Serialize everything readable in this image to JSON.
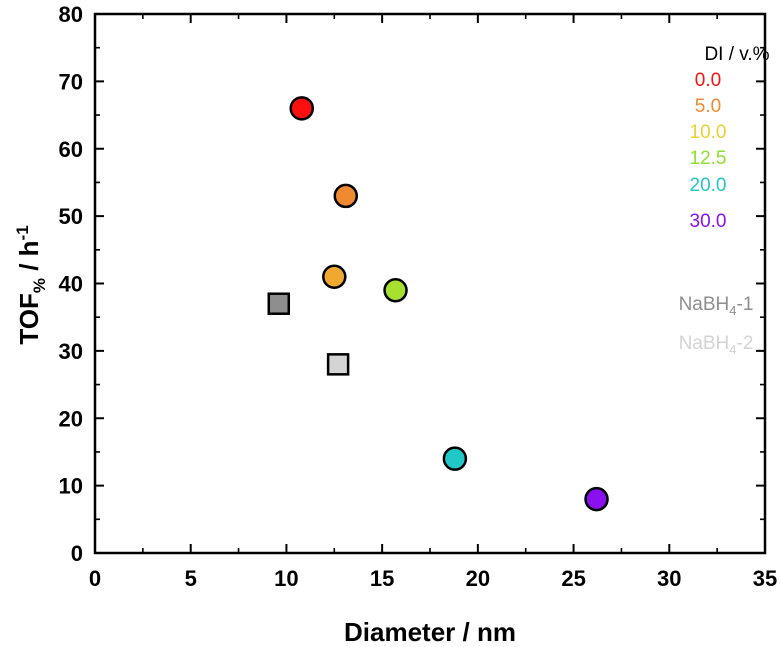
{
  "chart_data": {
    "type": "scatter",
    "xlabel": "Diameter / nm",
    "ylabel_main": "TOF",
    "ylabel_sub": "%",
    "ylabel_tail": " / h",
    "ylabel_sup": "-1",
    "xlim": [
      0,
      35
    ],
    "ylim": [
      0,
      80
    ],
    "x_ticks": [
      0,
      5,
      10,
      15,
      20,
      25,
      30,
      35
    ],
    "y_ticks": [
      0,
      10,
      20,
      30,
      40,
      50,
      60,
      70,
      80
    ],
    "x_tick_labels": [
      "0",
      "5",
      "10",
      "15",
      "20",
      "25",
      "30",
      "35"
    ],
    "y_tick_labels": [
      "0",
      "10",
      "20",
      "30",
      "40",
      "50",
      "60",
      "70",
      "80"
    ],
    "grid": false,
    "legend_title": "DI / v.%",
    "legend_placement": "top-right",
    "series": [
      {
        "name": "0.0",
        "marker": "circle",
        "color": "#ff1010",
        "x": [
          10.8
        ],
        "y": [
          66
        ]
      },
      {
        "name": "5.0",
        "marker": "circle",
        "color": "#f08a30",
        "x": [
          13.1
        ],
        "y": [
          53
        ]
      },
      {
        "name": "10.0",
        "marker": "circle",
        "color": "#f0a830",
        "x": [
          12.5
        ],
        "y": [
          41
        ]
      },
      {
        "name": "12.5",
        "marker": "circle",
        "color": "#a8e030",
        "x": [
          15.7
        ],
        "y": [
          39
        ]
      },
      {
        "name": "20.0",
        "marker": "circle",
        "color": "#20c8c8",
        "x": [
          18.8
        ],
        "y": [
          14
        ]
      },
      {
        "name": "30.0",
        "marker": "circle",
        "color": "#8a10f0",
        "x": [
          26.2
        ],
        "y": [
          8
        ]
      },
      {
        "name_main": "NaBH",
        "name_sub": "4",
        "name_tail": "-1",
        "marker": "square",
        "color": "#8e8e8e",
        "x": [
          9.6
        ],
        "y": [
          37
        ]
      },
      {
        "name_main": "NaBH",
        "name_sub": "4",
        "name_tail": "-2",
        "marker": "square",
        "color": "#d4d4d4",
        "x": [
          12.7
        ],
        "y": [
          28
        ]
      }
    ],
    "legend_text_colors": {
      "0.0": "#ff1010",
      "5.0": "#f08a30",
      "10.0": "#e8d030",
      "12.5": "#8ee030",
      "20.0": "#20c8c8",
      "30.0": "#8a10f0",
      "NaBH4-1": "#8e8e8e",
      "NaBH4-2": "#d4d4d4"
    }
  }
}
